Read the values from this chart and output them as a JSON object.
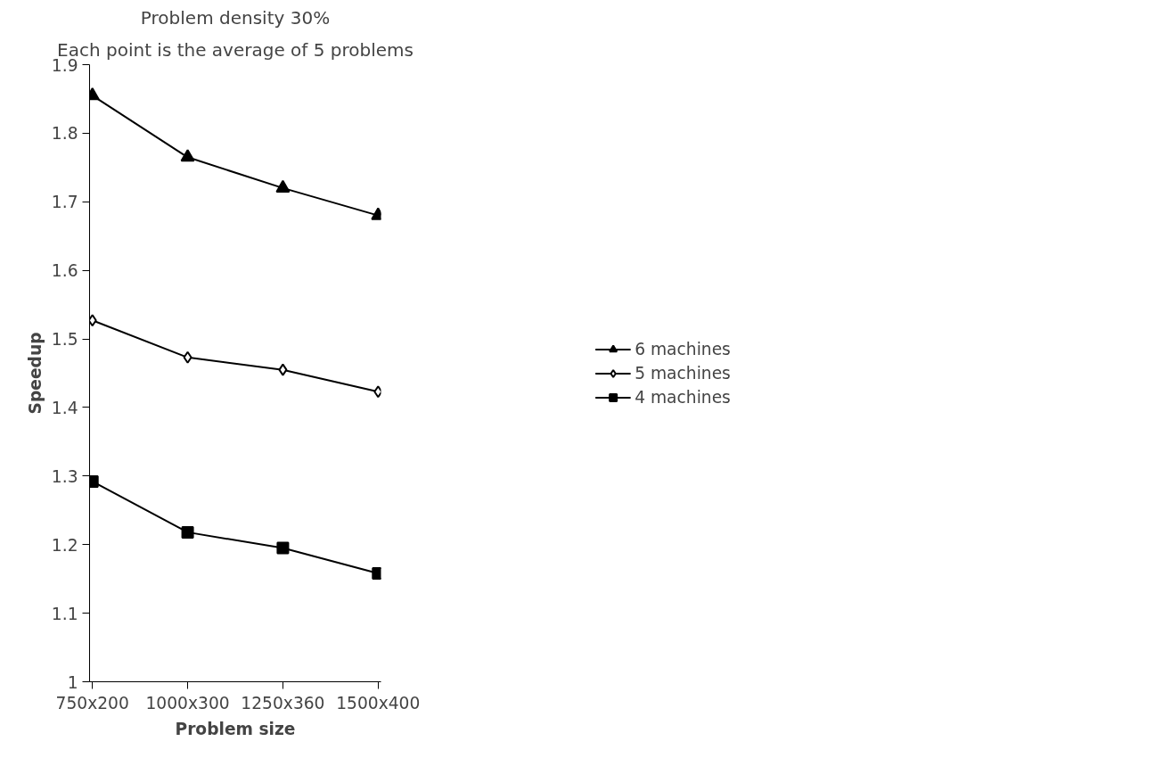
{
  "chart_data": {
    "type": "line",
    "title": "Problem density 30%",
    "subtitle": "Each point is the average of 5 problems",
    "xlabel": "Problem size",
    "ylabel": "Speedup",
    "categories": [
      "750x200",
      "1000x300",
      "1250x360",
      "1500x400"
    ],
    "series": [
      {
        "name": "6 machines",
        "color": "#000000",
        "marker": "triangle",
        "values": [
          1.855,
          1.765,
          1.72,
          1.68
        ]
      },
      {
        "name": "5 machines",
        "color": "#000000",
        "marker": "diamond",
        "values": [
          1.527,
          1.473,
          1.455,
          1.423
        ]
      },
      {
        "name": "4 machines",
        "color": "#000000",
        "marker": "square",
        "values": [
          1.292,
          1.218,
          1.195,
          1.158
        ]
      }
    ],
    "ylim": [
      1,
      1.9
    ],
    "yticks": [
      1,
      1.1,
      1.2,
      1.3,
      1.4,
      1.5,
      1.6,
      1.7,
      1.8,
      1.9
    ],
    "grid": false,
    "legend": "right",
    "line_style": "solid"
  }
}
